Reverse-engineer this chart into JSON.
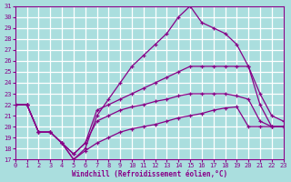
{
  "xlabel": "Windchill (Refroidissement éolien,°C)",
  "bg_color": "#aadede",
  "grid_color": "#ffffff",
  "line_color": "#880088",
  "xlim": [
    0,
    23
  ],
  "ylim": [
    17,
    31
  ],
  "yticks": [
    17,
    18,
    19,
    20,
    21,
    22,
    23,
    24,
    25,
    26,
    27,
    28,
    29,
    30,
    31
  ],
  "xticks": [
    0,
    1,
    2,
    3,
    4,
    5,
    6,
    7,
    8,
    9,
    10,
    11,
    12,
    13,
    14,
    15,
    16,
    17,
    18,
    19,
    20,
    21,
    22,
    23
  ],
  "line1_x": [
    0,
    1,
    2,
    3,
    4,
    5,
    6,
    7,
    8,
    9,
    10,
    11,
    12,
    13,
    14,
    15,
    16,
    17,
    18,
    19,
    20,
    21,
    22,
    23
  ],
  "line1_y": [
    22,
    22,
    19.5,
    19.5,
    18.5,
    17.0,
    18.0,
    21.0,
    22.5,
    24.0,
    25.5,
    26.5,
    27.5,
    28.5,
    30.0,
    31.0,
    29.5,
    29.0,
    28.5,
    27.5,
    25.5,
    23.0,
    21.0,
    20.5
  ],
  "line2_x": [
    0,
    1,
    2,
    3,
    4,
    5,
    6,
    7,
    8,
    9,
    10,
    11,
    12,
    13,
    14,
    15,
    16,
    17,
    18,
    19,
    20,
    21,
    22,
    23
  ],
  "line2_y": [
    22,
    22,
    19.5,
    19.5,
    18.5,
    17.5,
    18.5,
    21.5,
    22.0,
    22.5,
    23.0,
    23.5,
    24.0,
    24.5,
    25.0,
    25.5,
    25.5,
    25.5,
    25.5,
    25.5,
    25.5,
    22.0,
    20.0,
    20.0
  ],
  "line3_x": [
    0,
    1,
    2,
    3,
    4,
    5,
    6,
    7,
    8,
    9,
    10,
    11,
    12,
    13,
    14,
    15,
    16,
    17,
    18,
    19,
    20,
    21,
    22,
    23
  ],
  "line3_y": [
    22,
    22,
    19.5,
    19.5,
    18.5,
    17.5,
    18.5,
    20.5,
    21.0,
    21.5,
    21.8,
    22.0,
    22.3,
    22.5,
    22.8,
    23.0,
    23.0,
    23.0,
    23.0,
    22.8,
    22.5,
    20.5,
    20.0,
    20.0
  ],
  "line4_x": [
    0,
    1,
    2,
    3,
    4,
    5,
    6,
    7,
    8,
    9,
    10,
    11,
    12,
    13,
    14,
    15,
    16,
    17,
    18,
    19,
    20,
    21,
    22,
    23
  ],
  "line4_y": [
    22,
    22,
    19.5,
    19.5,
    18.5,
    17.0,
    17.8,
    18.5,
    19.0,
    19.5,
    19.8,
    20.0,
    20.2,
    20.5,
    20.8,
    21.0,
    21.2,
    21.5,
    21.7,
    21.8,
    20.0,
    20.0,
    20.0,
    20.0
  ]
}
